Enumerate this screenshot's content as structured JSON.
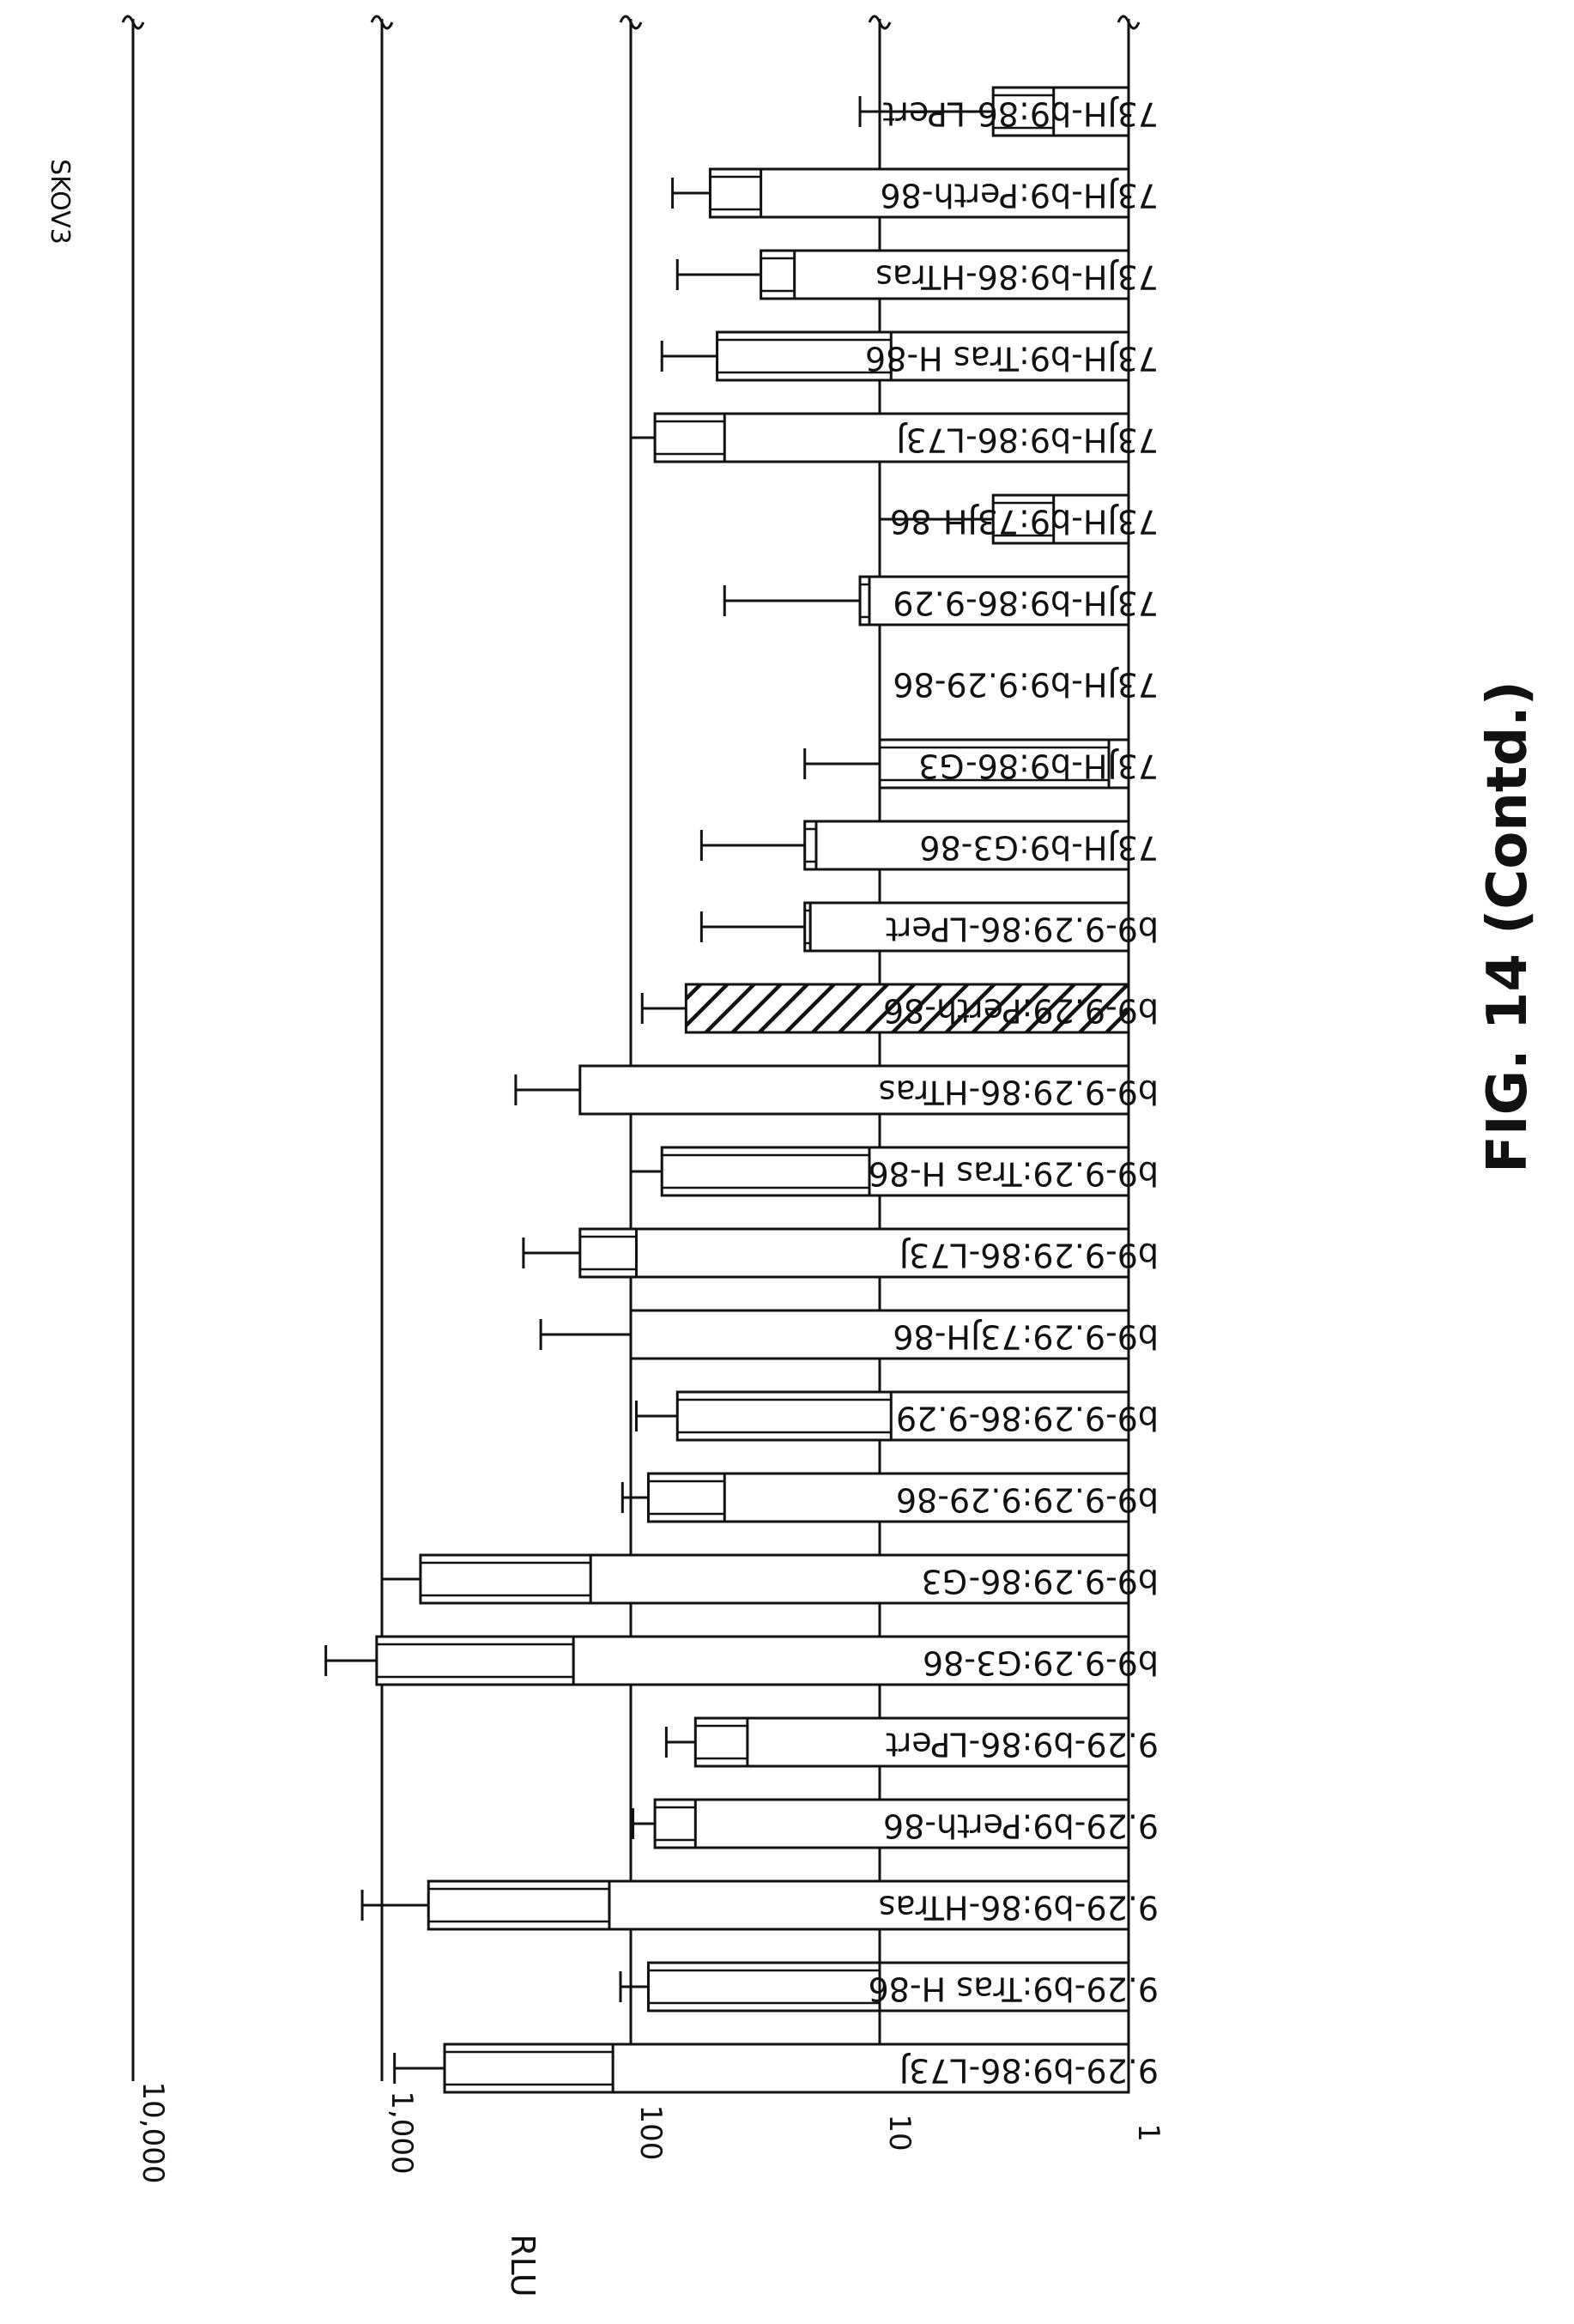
{
  "chart_data": {
    "type": "bar",
    "orientation": "rotated-90",
    "scale": "log",
    "title": "SKOV3",
    "ylabel": "RLU",
    "ylim": [
      1,
      10000
    ],
    "y_ticks": [
      "1",
      "10",
      "100",
      "1,000",
      "10,000"
    ],
    "y_tick_values": [
      1,
      10,
      100,
      1000,
      10000
    ],
    "grid": true,
    "categories": [
      "73JH-b9:86-LPert",
      "73JH-b9:Perth-86",
      "73JH-b9:86-HTras",
      "73JH-b9:Tras H-86",
      "73JH-b9:86-L73J",
      "73JH-b9:73JH-86",
      "73JH-b9:86-9.29",
      "73JH-b9:9.29-86",
      "73JH-b9:86-G3",
      "73JH-b9:G3-86",
      "b9-9.29:86-LPert",
      "b9-9.29:Perth-86",
      "b9-9.29:86-HTras",
      "b9-9.29:Tras H-86",
      "b9-9.29:86-L73J",
      "b9-9.29:73JH-86",
      "b9-9.29:86-9.29",
      "b9-9.29:9.29-86",
      "b9-9.29:86-G3",
      "b9-9.29:G3-86",
      "9.29-b9:86-LPert",
      "9.29-b9:Perth-86",
      "9.29-b9:86-HTras",
      "9.29-b9:Tras H-86",
      "9.29-b9:86-L73J"
    ],
    "values": [
      3.5,
      48,
      30,
      45,
      80,
      3.5,
      12,
      null,
      10,
      20,
      20,
      60,
      160,
      75,
      160,
      100,
      65,
      85,
      700,
      1050,
      55,
      80,
      650,
      85,
      560
    ],
    "inner_values": [
      2,
      30,
      22,
      9,
      42,
      2,
      11,
      null,
      1.2,
      18,
      19,
      null,
      null,
      11,
      95,
      null,
      9,
      42,
      145,
      170,
      34,
      55,
      122,
      10,
      118
    ],
    "error_upper": [
      12,
      68,
      65,
      75,
      100,
      10,
      42,
      null,
      20,
      52,
      52,
      90,
      290,
      100,
      270,
      230,
      95,
      108,
      1000,
      1680,
      72,
      98,
      1200,
      110,
      890
    ],
    "highlight_index": 11,
    "figure_label": "FIG. 14 (Contd.)"
  }
}
